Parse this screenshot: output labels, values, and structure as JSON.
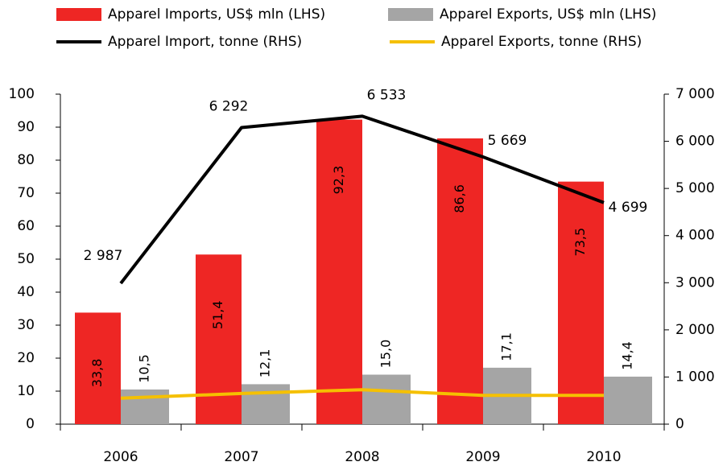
{
  "chart_data": {
    "type": "bar",
    "categories": [
      "2006",
      "2007",
      "2008",
      "2009",
      "2010"
    ],
    "series": [
      {
        "name": "Apparel Imports, US$ mln (LHS)",
        "type": "bar",
        "color": "#ee2624",
        "values": [
          33.8,
          51.4,
          92.3,
          86.6,
          73.5
        ],
        "value_labels": [
          "33,8",
          "51,4",
          "92,3",
          "86,6",
          "73,5"
        ]
      },
      {
        "name": "Apparel Exports, US$ mln (LHS)",
        "type": "bar",
        "color": "#a5a5a5",
        "values": [
          10.5,
          12.1,
          15.0,
          17.1,
          14.4
        ],
        "value_labels": [
          "10,5",
          "12,1",
          "15,0",
          "17,1",
          "14,4"
        ]
      },
      {
        "name": "Apparel Import, tonne (RHS)",
        "type": "line",
        "axis": "y2",
        "color": "#000000",
        "values": [
          2987,
          6292,
          6533,
          5669,
          4699
        ],
        "value_labels": [
          "2 987",
          "6 292",
          "6 533",
          "5 669",
          "4 699"
        ]
      },
      {
        "name": "Apparel Exports, tonne (RHS)",
        "type": "line",
        "axis": "y2",
        "color": "#f5c000",
        "values": [
          550,
          650,
          730,
          610,
          610
        ]
      }
    ],
    "ylim": [
      0,
      100
    ],
    "yticks": [
      0,
      10,
      20,
      30,
      40,
      50,
      60,
      70,
      80,
      90,
      100
    ],
    "y2lim": [
      0,
      7000
    ],
    "y2ticks": [
      0,
      {
        "value": 1000,
        "label": "1 000"
      },
      {
        "value": 2000,
        "label": "2 000"
      },
      {
        "value": 3000,
        "label": "3 000"
      },
      {
        "value": 4000,
        "label": "4 000"
      },
      {
        "value": 5000,
        "label": "5 000"
      },
      {
        "value": 6000,
        "label": "6 000"
      },
      {
        "value": 7000,
        "label": "7 000"
      }
    ],
    "grid": false
  }
}
